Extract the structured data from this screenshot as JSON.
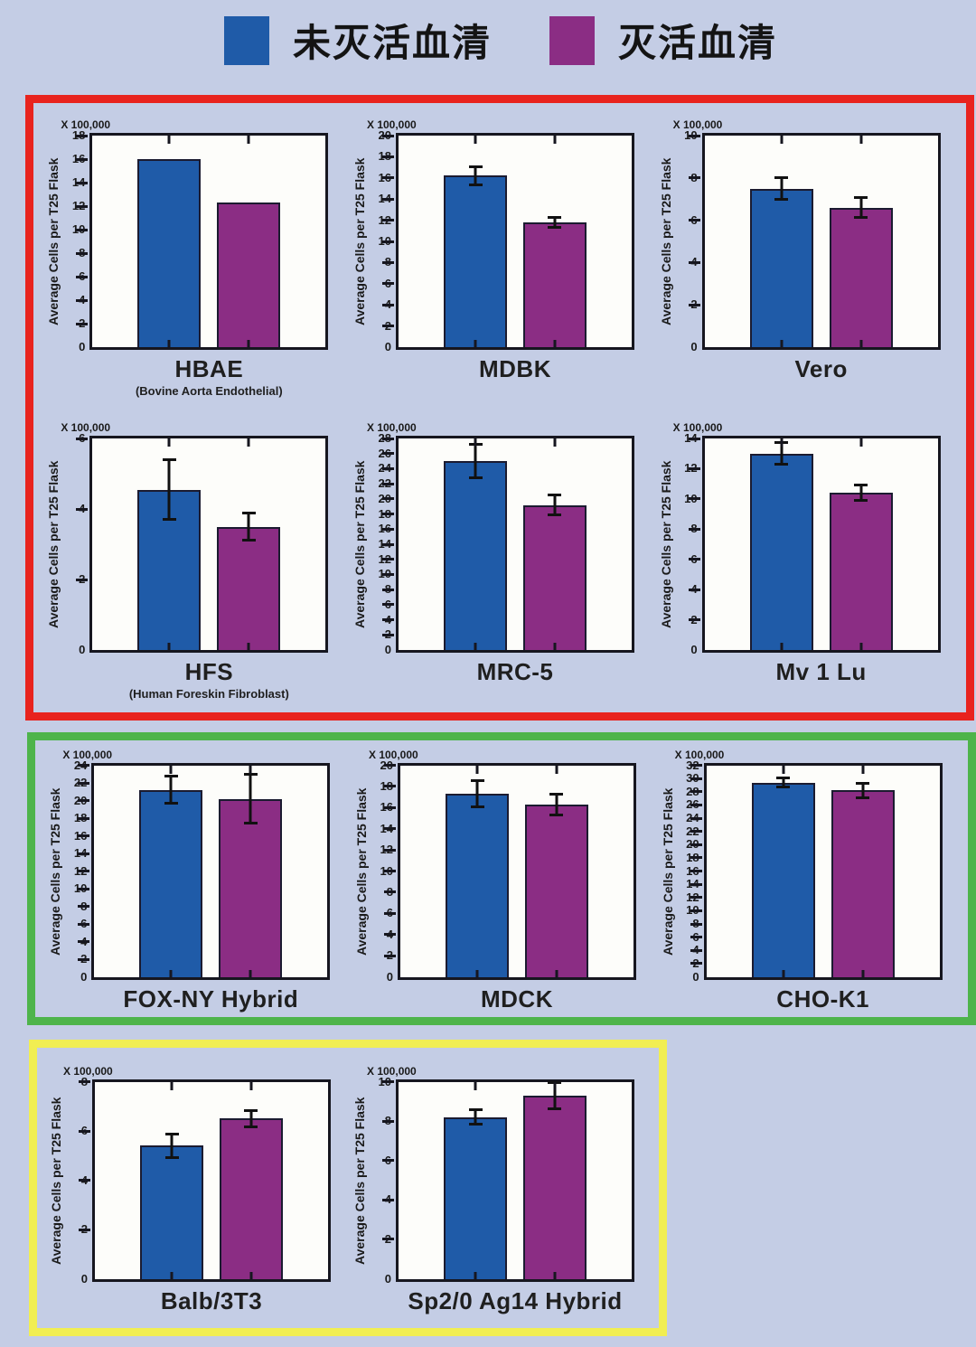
{
  "page": {
    "background_color": "#c4cde5",
    "plot_background": "#fdfdfa"
  },
  "legend": {
    "items": [
      {
        "label": "未灭活血清",
        "color": "#1f5ba8"
      },
      {
        "label": "灭活血清",
        "color": "#8b2d84"
      }
    ]
  },
  "groups": [
    {
      "id": "red",
      "border_color": "#e8231e",
      "charts": [
        "HBAE",
        "MDBK",
        "Vero",
        "HFS",
        "MRC-5",
        "Mv 1 Lu"
      ]
    },
    {
      "id": "green",
      "border_color": "#4eb44b",
      "charts": [
        "FOX-NY Hybrid",
        "MDCK",
        "CHO-K1"
      ]
    },
    {
      "id": "yellow",
      "border_color": "#f1ee52",
      "charts": [
        "Balb/3T3",
        "Sp2/0 Ag14 Hybrid"
      ]
    }
  ],
  "chart_data": [
    {
      "type": "bar",
      "title": "HBAE",
      "subtitle": "(Bovine Aorta Endothelial)",
      "row": "red-1",
      "ylabel": "Average Cells per T25 Flask",
      "scale_note": "X 100,000",
      "ylim": [
        0,
        18
      ],
      "ytick_step": 2,
      "grid": false,
      "series": [
        {
          "name": "未灭活血清",
          "value": 16.0,
          "error": 0,
          "color": "#1f5ba8"
        },
        {
          "name": "灭活血清",
          "value": 12.3,
          "error": 0,
          "color": "#8b2d84"
        }
      ]
    },
    {
      "type": "bar",
      "title": "MDBK",
      "subtitle": "",
      "row": "red-1",
      "ylabel": "Average Cells per T25 Flask",
      "scale_note": "X 100,000",
      "ylim": [
        0,
        20
      ],
      "ytick_step": 2,
      "grid": false,
      "series": [
        {
          "name": "未灭活血清",
          "value": 16.2,
          "error": 0.9,
          "color": "#1f5ba8"
        },
        {
          "name": "灭活血清",
          "value": 11.8,
          "error": 0.55,
          "color": "#8b2d84"
        }
      ]
    },
    {
      "type": "bar",
      "title": "Vero",
      "subtitle": "",
      "row": "red-1",
      "ylabel": "Average Cells per T25 Flask",
      "scale_note": "X 100,000",
      "ylim": [
        0,
        10
      ],
      "ytick_step": 2,
      "grid": false,
      "series": [
        {
          "name": "未灭活血清",
          "value": 7.5,
          "error": 0.55,
          "color": "#1f5ba8"
        },
        {
          "name": "灭活血清",
          "value": 6.6,
          "error": 0.5,
          "color": "#8b2d84"
        }
      ]
    },
    {
      "type": "bar",
      "title": "HFS",
      "subtitle": "(Human Foreskin Fibroblast)",
      "row": "red-2",
      "ylabel": "Average Cells per T25 Flask",
      "scale_note": "X 100,000",
      "ylim": [
        0,
        6
      ],
      "ytick_step": 2,
      "grid": false,
      "series": [
        {
          "name": "未灭活血清",
          "value": 4.55,
          "error": 0.85,
          "color": "#1f5ba8"
        },
        {
          "name": "灭活血清",
          "value": 3.5,
          "error": 0.4,
          "color": "#8b2d84"
        }
      ]
    },
    {
      "type": "bar",
      "title": "MRC-5",
      "subtitle": "",
      "row": "red-2",
      "ylabel": "Average Cells per T25 Flask",
      "scale_note": "X 100,000",
      "ylim": [
        0,
        28
      ],
      "ytick_step": 2,
      "grid": false,
      "series": [
        {
          "name": "未灭活血清",
          "value": 25.0,
          "error": 2.3,
          "color": "#1f5ba8"
        },
        {
          "name": "灭活血清",
          "value": 19.2,
          "error": 1.4,
          "color": "#8b2d84"
        }
      ]
    },
    {
      "type": "bar",
      "title": "Mv 1 Lu",
      "subtitle": "",
      "row": "red-2",
      "ylabel": "Average Cells per T25 Flask",
      "scale_note": "X 100,000",
      "ylim": [
        0,
        14
      ],
      "ytick_step": 2,
      "grid": false,
      "series": [
        {
          "name": "未灭活血清",
          "value": 13.0,
          "error": 0.75,
          "color": "#1f5ba8"
        },
        {
          "name": "灭活血清",
          "value": 10.4,
          "error": 0.55,
          "color": "#8b2d84"
        }
      ]
    },
    {
      "type": "bar",
      "title": "FOX-NY Hybrid",
      "subtitle": "",
      "row": "green-1",
      "ylabel": "Average Cells per T25 Flask",
      "scale_note": "X 100,000",
      "ylim": [
        0,
        24
      ],
      "ytick_step": 2,
      "grid": false,
      "series": [
        {
          "name": "未灭活血清",
          "value": 21.2,
          "error": 1.6,
          "color": "#1f5ba8"
        },
        {
          "name": "灭活血清",
          "value": 20.2,
          "error": 2.8,
          "color": "#8b2d84"
        }
      ]
    },
    {
      "type": "bar",
      "title": "MDCK",
      "subtitle": "",
      "row": "green-1",
      "ylabel": "Average Cells per T25 Flask",
      "scale_note": "X 100,000",
      "ylim": [
        0,
        20
      ],
      "ytick_step": 2,
      "grid": false,
      "series": [
        {
          "name": "未灭活血清",
          "value": 17.3,
          "error": 1.25,
          "color": "#1f5ba8"
        },
        {
          "name": "灭活血清",
          "value": 16.3,
          "error": 1.05,
          "color": "#8b2d84"
        }
      ]
    },
    {
      "type": "bar",
      "title": "CHO-K1",
      "subtitle": "",
      "row": "green-1",
      "ylabel": "Average Cells per T25 Flask",
      "scale_note": "X 100,000",
      "ylim": [
        0,
        32
      ],
      "ytick_step": 2,
      "grid": false,
      "series": [
        {
          "name": "未灭活血清",
          "value": 29.4,
          "error": 0.8,
          "color": "#1f5ba8"
        },
        {
          "name": "灭活血清",
          "value": 28.2,
          "error": 1.2,
          "color": "#8b2d84"
        }
      ]
    },
    {
      "type": "bar",
      "title": "Balb/3T3",
      "subtitle": "",
      "row": "yellow-1",
      "ylabel": "Average Cells per T25 Flask",
      "scale_note": "X 100,000",
      "ylim": [
        0,
        8
      ],
      "ytick_step": 2,
      "grid": false,
      "series": [
        {
          "name": "未灭活血清",
          "value": 5.4,
          "error": 0.5,
          "color": "#1f5ba8"
        },
        {
          "name": "灭活血清",
          "value": 6.5,
          "error": 0.35,
          "color": "#8b2d84"
        }
      ]
    },
    {
      "type": "bar",
      "title": "Sp2/0 Ag14 Hybrid",
      "subtitle": "",
      "row": "yellow-1",
      "ylabel": "Average Cells per T25 Flask",
      "scale_note": "X 100,000",
      "ylim": [
        0,
        10
      ],
      "ytick_step": 2,
      "grid": false,
      "series": [
        {
          "name": "未灭活血清",
          "value": 8.2,
          "error": 0.4,
          "color": "#1f5ba8"
        },
        {
          "name": "灭活血清",
          "value": 9.3,
          "error": 0.7,
          "color": "#8b2d84"
        }
      ]
    }
  ]
}
